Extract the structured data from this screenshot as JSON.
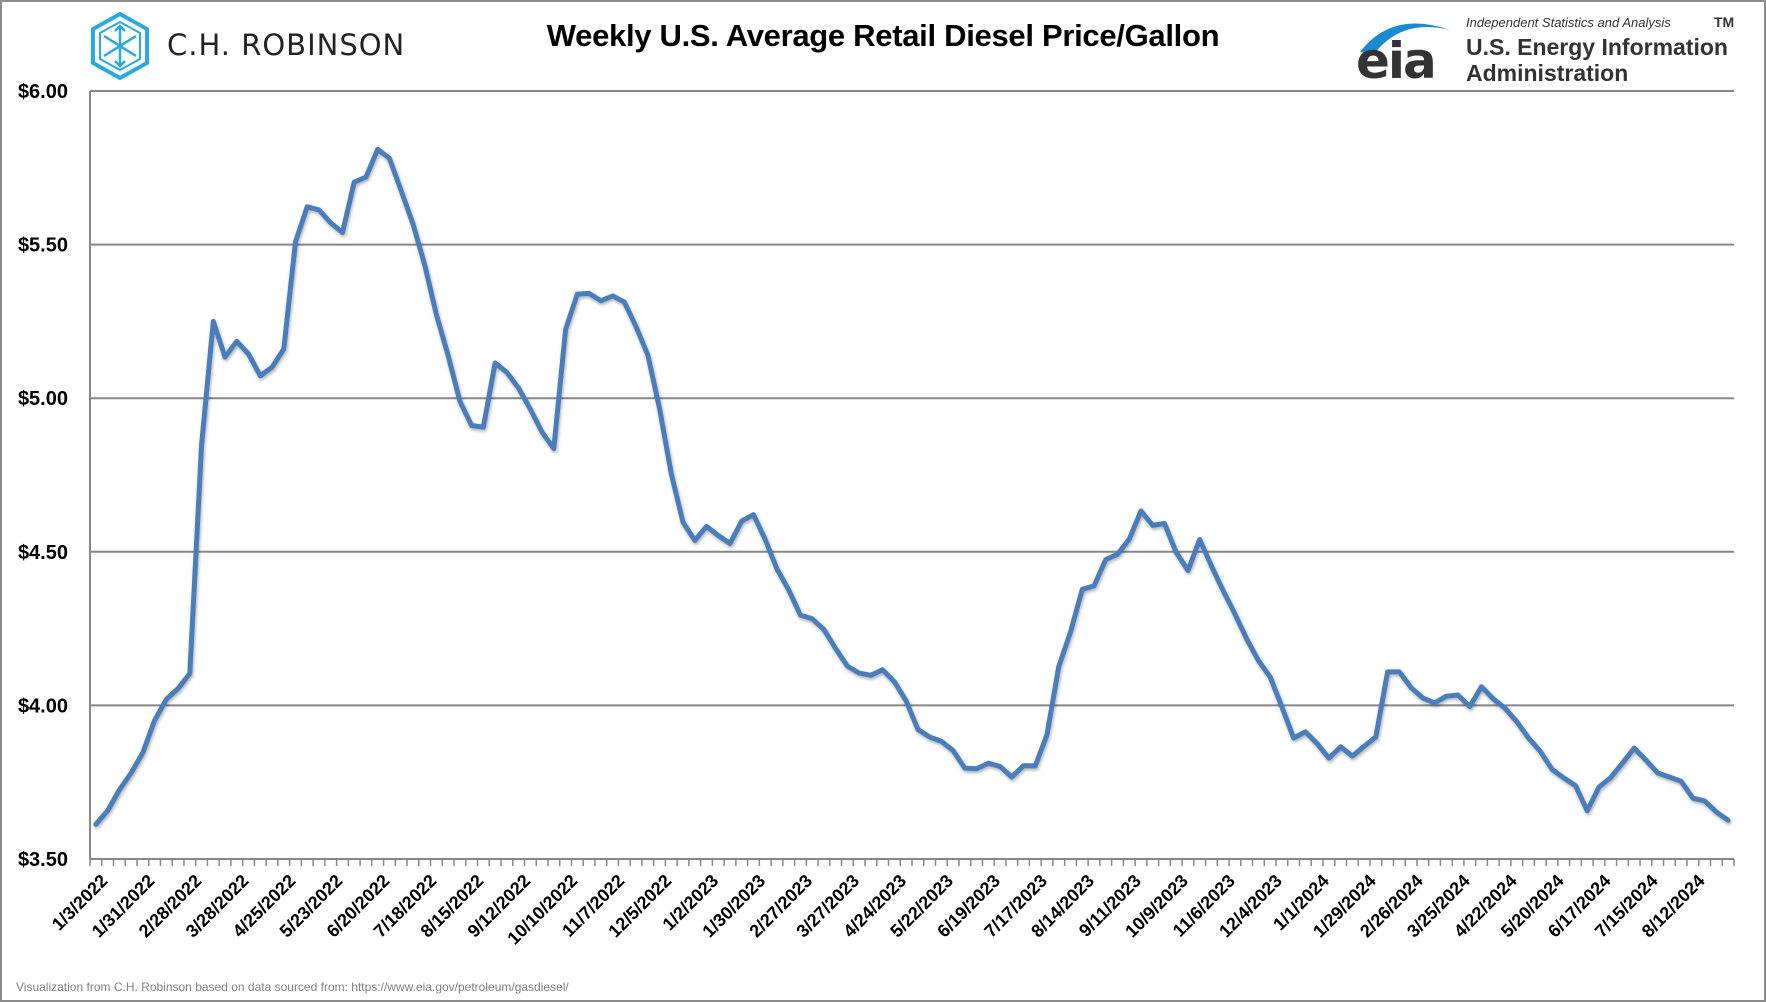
{
  "header": {
    "title": "Weekly U.S. Average Retail Diesel Price/Gallon",
    "left_logo": {
      "name": "C.H. ROBINSON",
      "icon": "hexagon-arrows-icon",
      "color": "#29a9e0"
    },
    "right_logo": {
      "wordmark": "eia",
      "tagline": "Independent Statistics and Analysis",
      "trademark": "TM",
      "line1": "U.S. Energy Information",
      "line2": "Administration",
      "color": "#1a8bd0"
    }
  },
  "footer": {
    "source": "Visualization from C.H. Robinson based on data sourced from: https://www.eia.gov/petroleum/gasdiesel/"
  },
  "chart_data": {
    "type": "line",
    "title": "Weekly U.S. Average Retail Diesel Price/Gallon",
    "xlabel": "",
    "ylabel": "",
    "frequency": "weekly",
    "x_start": "1/3/2022",
    "x_end": "9/2/2024",
    "ylim": [
      3.5,
      6.0
    ],
    "y_ticks": [
      3.5,
      4.0,
      4.5,
      5.0,
      5.5,
      6.0
    ],
    "y_tick_labels": [
      "$3.50",
      "$4.00",
      "$4.50",
      "$5.00",
      "$5.50",
      "$6.00"
    ],
    "x_tick_every": 4,
    "x_tick_labels": [
      "1/3/2022",
      "1/31/2022",
      "2/28/2022",
      "3/28/2022",
      "4/25/2022",
      "5/23/2022",
      "6/20/2022",
      "7/18/2022",
      "8/15/2022",
      "9/12/2022",
      "10/10/2022",
      "11/7/2022",
      "12/5/2022",
      "1/2/2023",
      "1/30/2023",
      "2/27/2023",
      "3/27/2023",
      "4/24/2023",
      "5/22/2023",
      "6/19/2023",
      "7/17/2023",
      "8/14/2023",
      "9/11/2023",
      "10/9/2023",
      "11/6/2023",
      "12/4/2023",
      "1/1/2024",
      "1/29/2024",
      "2/26/2024",
      "3/25/2024",
      "4/22/2024",
      "5/20/2024",
      "6/17/2024",
      "7/15/2024",
      "8/12/2024"
    ],
    "grid": true,
    "series": [
      {
        "name": "Diesel Price",
        "color": "#4a7ebb",
        "values": [
          3.613,
          3.657,
          3.725,
          3.78,
          3.846,
          3.951,
          4.02,
          4.055,
          4.104,
          4.849,
          5.25,
          5.134,
          5.185,
          5.144,
          5.073,
          5.101,
          5.16,
          5.509,
          5.623,
          5.613,
          5.571,
          5.539,
          5.703,
          5.72,
          5.81,
          5.781,
          5.675,
          5.568,
          5.434,
          5.272,
          5.138,
          4.99,
          4.911,
          4.906,
          5.115,
          5.084,
          5.033,
          4.964,
          4.889,
          4.836,
          5.224,
          5.339,
          5.341,
          5.317,
          5.333,
          5.313,
          5.233,
          5.141,
          4.967,
          4.754,
          4.596,
          4.537,
          4.583,
          4.553,
          4.527,
          4.6,
          4.621,
          4.54,
          4.444,
          4.376,
          4.294,
          4.282,
          4.247,
          4.185,
          4.128,
          4.105,
          4.098,
          4.116,
          4.077,
          4.015,
          3.922,
          3.897,
          3.883,
          3.853,
          3.796,
          3.794,
          3.812,
          3.801,
          3.767,
          3.804,
          3.803,
          3.905,
          4.127,
          4.239,
          4.378,
          4.389,
          4.475,
          4.492,
          4.541,
          4.633,
          4.586,
          4.592,
          4.498,
          4.439,
          4.54,
          4.454,
          4.373,
          4.298,
          4.216,
          4.146,
          4.092,
          3.995,
          3.894,
          3.914,
          3.876,
          3.828,
          3.865,
          3.835,
          3.867,
          3.897,
          4.109,
          4.109,
          4.058,
          4.024,
          4.008,
          4.03,
          4.034,
          3.996,
          4.061,
          4.021,
          3.991,
          3.947,
          3.894,
          3.851,
          3.792,
          3.764,
          3.739,
          3.657,
          3.734,
          3.765,
          3.812,
          3.861,
          3.822,
          3.78,
          3.767,
          3.753,
          3.698,
          3.689,
          3.653,
          3.626
        ]
      }
    ]
  }
}
